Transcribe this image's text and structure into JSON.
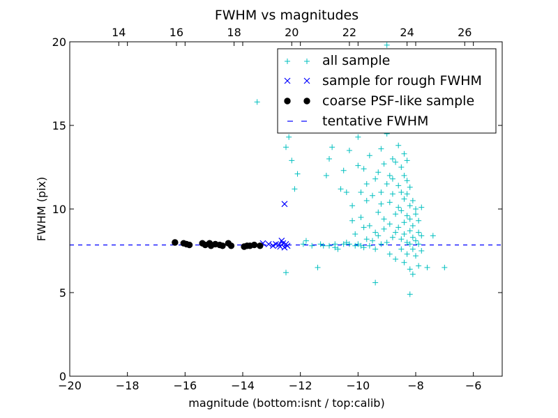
{
  "chart_data": {
    "type": "scatter",
    "title": "FWHM vs magnitudes",
    "xlabel": "magnitude (bottom:isnt / top:calib)",
    "ylabel": "FWHM (pix)",
    "xlim": [
      -20,
      -5
    ],
    "ylim": [
      0,
      20
    ],
    "x_ticks": [
      -20,
      -18,
      -16,
      -14,
      -12,
      -10,
      -8,
      -6
    ],
    "x_tick_labels": [
      "−20",
      "−18",
      "−16",
      "−14",
      "−12",
      "−10",
      "−8",
      "−6"
    ],
    "y_ticks": [
      0,
      5,
      10,
      15,
      20
    ],
    "y_tick_labels": [
      "0",
      "5",
      "10",
      "15",
      "20"
    ],
    "top_axis": {
      "offset": 32.3,
      "ticks": [
        14,
        16,
        18,
        20,
        22,
        24,
        26
      ],
      "tick_labels": [
        "14",
        "16",
        "18",
        "20",
        "22",
        "24",
        "26"
      ]
    },
    "grid": false,
    "legend_position": "top-right",
    "legend": {
      "all": "all sample",
      "rough": "sample for rough FWHM",
      "coarse": "coarse PSF-like sample",
      "tentative": "tentative FWHM"
    },
    "colors": {
      "all": "#00bfbf",
      "rough": "#0000ff",
      "coarse": "#000000",
      "tentative": "#0000ff",
      "axes": "#000000"
    },
    "tentative_fwhm": 7.85,
    "series": [
      {
        "id": "all",
        "marker": "plus",
        "points": [
          [
            -13.5,
            16.4
          ],
          [
            -12.5,
            6.2
          ],
          [
            -12.5,
            13.7
          ],
          [
            -12.4,
            14.3
          ],
          [
            -12.3,
            12.9
          ],
          [
            -12.2,
            11.2
          ],
          [
            -12.1,
            12.1
          ],
          [
            -11.9,
            7.9
          ],
          [
            -11.8,
            8.1
          ],
          [
            -11.6,
            7.8
          ],
          [
            -11.4,
            6.5
          ],
          [
            -11.3,
            7.9
          ],
          [
            -11.2,
            7.8
          ],
          [
            -11.1,
            12.0
          ],
          [
            -11.0,
            13.0
          ],
          [
            -11.0,
            7.8
          ],
          [
            -10.9,
            13.7
          ],
          [
            -10.8,
            7.9
          ],
          [
            -10.8,
            7.7
          ],
          [
            -10.7,
            7.6
          ],
          [
            -10.6,
            11.2
          ],
          [
            -10.5,
            12.3
          ],
          [
            -10.5,
            7.9
          ],
          [
            -10.4,
            11.0
          ],
          [
            -10.4,
            8.0
          ],
          [
            -10.3,
            13.5
          ],
          [
            -10.3,
            7.9
          ],
          [
            -10.2,
            10.2
          ],
          [
            -10.2,
            9.3
          ],
          [
            -10.1,
            8.5
          ],
          [
            -10.1,
            7.8
          ],
          [
            -10.0,
            14.3
          ],
          [
            -10.0,
            12.6
          ],
          [
            -10.0,
            7.9
          ],
          [
            -9.9,
            9.5
          ],
          [
            -9.9,
            11.0
          ],
          [
            -9.9,
            7.8
          ],
          [
            -9.8,
            8.9
          ],
          [
            -9.8,
            12.4
          ],
          [
            -9.8,
            7.7
          ],
          [
            -9.7,
            10.5
          ],
          [
            -9.7,
            11.5
          ],
          [
            -9.7,
            8.2
          ],
          [
            -9.6,
            13.2
          ],
          [
            -9.6,
            9.0
          ],
          [
            -9.6,
            7.8
          ],
          [
            -9.5,
            10.8
          ],
          [
            -9.5,
            14.7
          ],
          [
            -9.5,
            8.1
          ],
          [
            -9.4,
            11.8
          ],
          [
            -9.4,
            8.6
          ],
          [
            -9.4,
            7.6
          ],
          [
            -9.4,
            5.6
          ],
          [
            -9.3,
            12.2
          ],
          [
            -9.3,
            9.8
          ],
          [
            -9.3,
            8.4
          ],
          [
            -9.2,
            10.3
          ],
          [
            -9.2,
            13.6
          ],
          [
            -9.2,
            7.9
          ],
          [
            -9.2,
            11.0
          ],
          [
            -9.1,
            8.8
          ],
          [
            -9.1,
            12.7
          ],
          [
            -9.1,
            9.4
          ],
          [
            -9.0,
            19.8
          ],
          [
            -9.0,
            11.5
          ],
          [
            -9.0,
            8.0
          ],
          [
            -9.0,
            14.5
          ],
          [
            -8.9,
            10.4
          ],
          [
            -8.9,
            12.0
          ],
          [
            -8.9,
            9.1
          ],
          [
            -8.9,
            7.3
          ],
          [
            -8.8,
            13.0
          ],
          [
            -8.8,
            10.9
          ],
          [
            -8.8,
            8.3
          ],
          [
            -8.8,
            11.8
          ],
          [
            -8.7,
            9.7
          ],
          [
            -8.7,
            12.8
          ],
          [
            -8.7,
            8.6
          ],
          [
            -8.7,
            7.0
          ],
          [
            -8.6,
            13.8
          ],
          [
            -8.6,
            10.1
          ],
          [
            -8.6,
            11.4
          ],
          [
            -8.6,
            8.9
          ],
          [
            -8.6,
            15.2
          ],
          [
            -8.5,
            12.5
          ],
          [
            -8.5,
            9.9
          ],
          [
            -8.5,
            8.2
          ],
          [
            -8.5,
            11.0
          ],
          [
            -8.5,
            7.6
          ],
          [
            -8.4,
            13.3
          ],
          [
            -8.4,
            10.6
          ],
          [
            -8.4,
            9.2
          ],
          [
            -8.4,
            12.0
          ],
          [
            -8.4,
            8.5
          ],
          [
            -8.4,
            6.8
          ],
          [
            -8.3,
            11.7
          ],
          [
            -8.3,
            9.6
          ],
          [
            -8.3,
            10.9
          ],
          [
            -8.3,
            8.0
          ],
          [
            -8.3,
            7.3
          ],
          [
            -8.3,
            12.9
          ],
          [
            -8.2,
            10.2
          ],
          [
            -8.2,
            8.7
          ],
          [
            -8.2,
            9.4
          ],
          [
            -8.2,
            11.3
          ],
          [
            -8.2,
            7.9
          ],
          [
            -8.2,
            4.9
          ],
          [
            -8.2,
            6.4
          ],
          [
            -8.1,
            9.0
          ],
          [
            -8.1,
            8.3
          ],
          [
            -8.1,
            10.5
          ],
          [
            -8.1,
            7.6
          ],
          [
            -8.1,
            6.1
          ],
          [
            -8.0,
            9.7
          ],
          [
            -8.0,
            8.1
          ],
          [
            -8.0,
            7.2
          ],
          [
            -8.0,
            10.0
          ],
          [
            -7.9,
            8.6
          ],
          [
            -7.9,
            7.9
          ],
          [
            -7.9,
            9.3
          ],
          [
            -7.9,
            6.6
          ],
          [
            -7.8,
            8.4
          ],
          [
            -7.8,
            7.5
          ],
          [
            -7.8,
            10.1
          ],
          [
            -7.6,
            6.5
          ],
          [
            -7.4,
            8.4
          ],
          [
            -7.0,
            6.5
          ]
        ]
      },
      {
        "id": "rough",
        "marker": "x",
        "points": [
          [
            -13.3,
            7.95
          ],
          [
            -13.1,
            7.9
          ],
          [
            -12.95,
            7.8
          ],
          [
            -12.85,
            7.9
          ],
          [
            -12.75,
            7.85
          ],
          [
            -12.7,
            7.75
          ],
          [
            -12.65,
            8.1
          ],
          [
            -12.6,
            7.95
          ],
          [
            -12.55,
            7.7
          ],
          [
            -12.55,
            10.3
          ],
          [
            -12.5,
            7.9
          ],
          [
            -12.45,
            7.8
          ]
        ]
      },
      {
        "id": "coarse",
        "marker": "circle",
        "points": [
          [
            -16.35,
            8.0
          ],
          [
            -16.05,
            7.95
          ],
          [
            -15.95,
            7.9
          ],
          [
            -15.85,
            7.85
          ],
          [
            -15.4,
            7.95
          ],
          [
            -15.3,
            7.85
          ],
          [
            -15.15,
            7.95
          ],
          [
            -15.1,
            7.8
          ],
          [
            -14.95,
            7.9
          ],
          [
            -14.8,
            7.85
          ],
          [
            -14.7,
            7.8
          ],
          [
            -14.5,
            7.95
          ],
          [
            -14.4,
            7.8
          ],
          [
            -13.95,
            7.75
          ],
          [
            -13.85,
            7.8
          ],
          [
            -13.75,
            7.8
          ],
          [
            -13.6,
            7.85
          ],
          [
            -13.4,
            7.8
          ]
        ]
      }
    ]
  }
}
